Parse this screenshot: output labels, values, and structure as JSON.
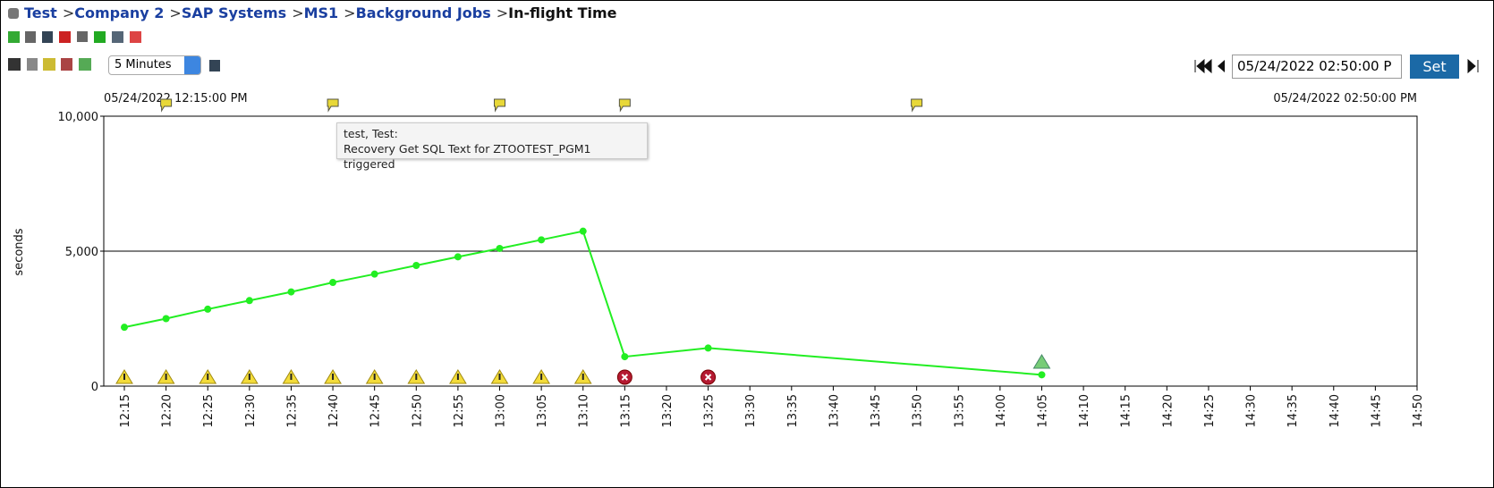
{
  "breadcrumb": {
    "items": [
      "Test",
      "Company 2",
      "SAP Systems",
      "MS1",
      "Background Jobs"
    ],
    "separator": ">",
    "current": "In-flight Time"
  },
  "toolbar": {
    "interval": "5 Minutes",
    "date_input": "05/24/2022 02:50:00 P",
    "set_button": "Set"
  },
  "range": {
    "start": "05/24/2022 12:15:00 PM",
    "end": "05/24/2022 02:50:00 PM"
  },
  "tooltip": {
    "line1": "test, Test:",
    "line2": "Recovery Get SQL Text for ZTOOTEST_PGM1 triggered"
  },
  "chart_data": {
    "type": "line",
    "y_label": "seconds",
    "categories": [
      "12:15",
      "12:20",
      "12:25",
      "12:30",
      "12:35",
      "12:40",
      "12:45",
      "12:50",
      "12:55",
      "13:00",
      "13:05",
      "13:10",
      "13:15",
      "13:20",
      "13:25",
      "13:30",
      "13:35",
      "13:40",
      "13:45",
      "13:50",
      "13:55",
      "14:00",
      "14:05",
      "14:10",
      "14:15",
      "14:20",
      "14:25",
      "14:30",
      "14:35",
      "14:40",
      "14:45",
      "14:50"
    ],
    "series": [
      {
        "name": "In-flight Time",
        "color": "#22ee22",
        "x": [
          "12:15",
          "12:20",
          "12:25",
          "12:30",
          "12:35",
          "12:40",
          "12:45",
          "12:50",
          "12:55",
          "13:00",
          "13:05",
          "13:10",
          "13:15",
          "13:25",
          "14:05"
        ],
        "values": [
          2180,
          2500,
          2850,
          3170,
          3490,
          3840,
          4150,
          4470,
          4790,
          5100,
          5420,
          5740,
          1090,
          1410,
          420
        ]
      }
    ],
    "ylim": [
      0,
      10000
    ],
    "yticks": [
      0,
      {
        "value": 5000,
        "label": "5,000"
      },
      {
        "value": 10000,
        "label": "10,000"
      }
    ],
    "grid": true,
    "warning_x": [
      "12:15",
      "12:20",
      "12:25",
      "12:30",
      "12:35",
      "12:40",
      "12:45",
      "12:50",
      "12:55",
      "13:00",
      "13:05",
      "13:10"
    ],
    "error_x": [
      "13:15",
      "13:25"
    ],
    "ok_x": [
      "14:05"
    ],
    "flag_x": [
      "12:20",
      "12:40",
      "13:00",
      "13:15",
      "13:50"
    ]
  }
}
